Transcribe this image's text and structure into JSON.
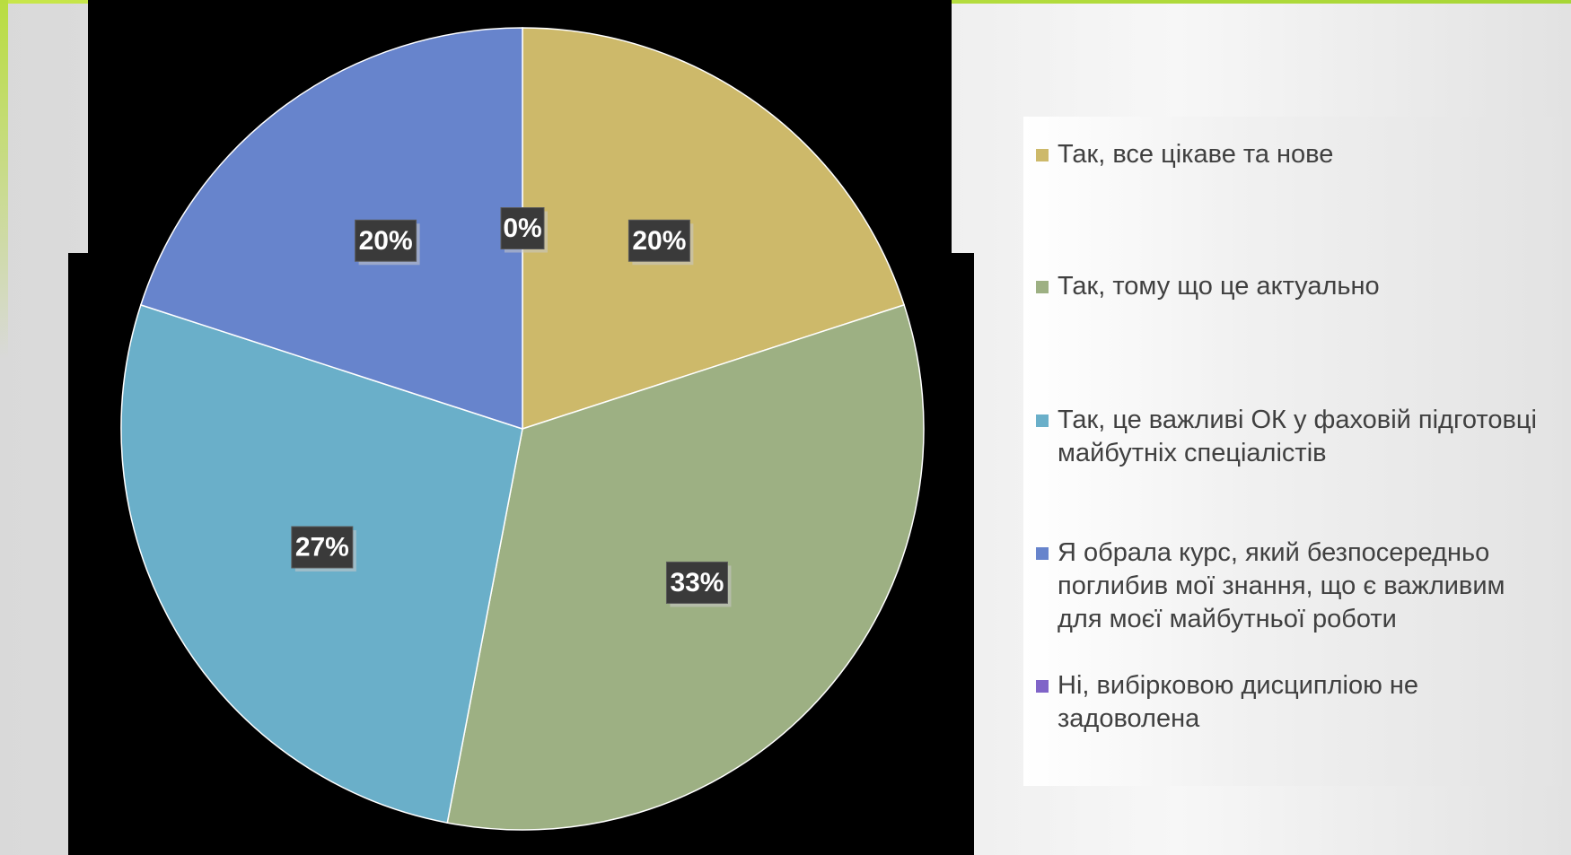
{
  "chart_data": {
    "type": "pie",
    "title": "",
    "legend_position": "right",
    "slices": [
      {
        "label": "Так, все цікаве та нове",
        "value": 20,
        "display": "20%",
        "color": "#cdb96a"
      },
      {
        "label": "Так, тому що це актуально",
        "value": 33,
        "display": "33%",
        "color": "#9db083"
      },
      {
        "label": "Так, це важливі ОК у фаховій підготовці майбутніх спеціалістів",
        "value": 27,
        "display": "27%",
        "color": "#6aafc9"
      },
      {
        "label": "Я обрала курс, який безпосередньо поглибив мої знання, що є важливим для моєї майбутньої роботи",
        "value": 20,
        "display": "20%",
        "color": "#6784cc"
      },
      {
        "label": "Ні, вибірковою дисципліою не задоволена",
        "value": 0,
        "display": "0%",
        "color": "#8064c8"
      }
    ]
  }
}
